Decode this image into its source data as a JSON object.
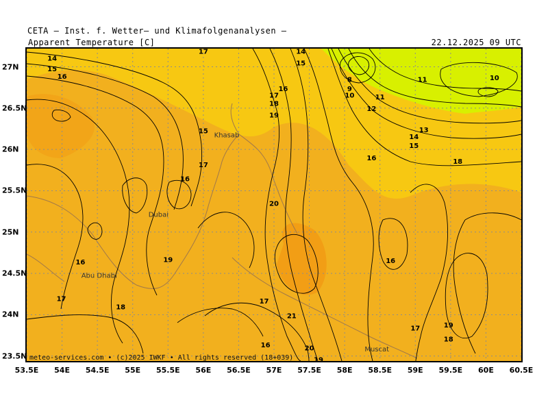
{
  "header": {
    "provider": "CETA — Inst. f. Wetter— und Klimafolgenanalysen —",
    "parameter": "Apparent Temperature [C]",
    "datetime": "22.12.2025 09 UTC"
  },
  "map": {
    "lon_range": [
      53.5,
      60.5
    ],
    "lat_range": [
      23.44,
      27.22
    ],
    "lon_ticks": [
      "53.5E",
      "54E",
      "54.5E",
      "55E",
      "55.5E",
      "56E",
      "56.5E",
      "57E",
      "57.5E",
      "58E",
      "58.5E",
      "59E",
      "59.5E",
      "60E",
      "60.5E"
    ],
    "lat_ticks": [
      {
        "lat": 27.0,
        "label": "27N"
      },
      {
        "lat": 26.5,
        "label": "26.5N"
      },
      {
        "lat": 26.0,
        "label": "26N"
      },
      {
        "lat": 25.5,
        "label": "25.5N"
      },
      {
        "lat": 25.0,
        "label": "25N"
      },
      {
        "lat": 24.5,
        "label": "24.5N"
      },
      {
        "lat": 24.0,
        "label": "24N"
      },
      {
        "lat": 23.5,
        "label": "23.5N"
      }
    ],
    "places": [
      {
        "name": "Khasab",
        "lon": 56.25,
        "lat": 26.17
      },
      {
        "name": "Dubai",
        "lon": 55.32,
        "lat": 25.21
      },
      {
        "name": "Abu Dhabi",
        "lon": 54.37,
        "lat": 24.47
      },
      {
        "name": "Muscat",
        "lon": 58.38,
        "lat": 23.58
      }
    ],
    "colors": {
      "temp_10_11": "#d8f000",
      "temp_12_15": "#f8cc10",
      "temp_16_19": "#f2b01e",
      "temp_20_23": "#f29c14",
      "contour": "#000000",
      "coast": "#a0784a",
      "grid": "#8c8c8c"
    },
    "contour_labels": [
      {
        "text": "14",
        "lon": 53.86,
        "lat": 27.11
      },
      {
        "text": "15",
        "lon": 53.86,
        "lat": 26.98
      },
      {
        "text": "16",
        "lon": 54.0,
        "lat": 26.89
      },
      {
        "text": "17",
        "lon": 56.0,
        "lat": 27.19
      },
      {
        "text": "14",
        "lon": 57.38,
        "lat": 27.19
      },
      {
        "text": "15",
        "lon": 57.38,
        "lat": 27.05
      },
      {
        "text": "16",
        "lon": 57.13,
        "lat": 26.74
      },
      {
        "text": "17",
        "lon": 57.0,
        "lat": 26.66
      },
      {
        "text": "18",
        "lon": 57.0,
        "lat": 26.56
      },
      {
        "text": "19",
        "lon": 57.0,
        "lat": 26.42
      },
      {
        "text": "15",
        "lon": 56.0,
        "lat": 26.23
      },
      {
        "text": "17",
        "lon": 56.0,
        "lat": 25.82
      },
      {
        "text": "16",
        "lon": 55.74,
        "lat": 25.65
      },
      {
        "text": "8",
        "lon": 58.07,
        "lat": 26.85
      },
      {
        "text": "9",
        "lon": 58.07,
        "lat": 26.74
      },
      {
        "text": "10",
        "lon": 58.07,
        "lat": 26.66
      },
      {
        "text": "11",
        "lon": 58.5,
        "lat": 26.64
      },
      {
        "text": "11",
        "lon": 59.1,
        "lat": 26.85
      },
      {
        "text": "10",
        "lon": 60.12,
        "lat": 26.87
      },
      {
        "text": "12",
        "lon": 58.38,
        "lat": 26.5
      },
      {
        "text": "13",
        "lon": 59.12,
        "lat": 26.24
      },
      {
        "text": "14",
        "lon": 58.98,
        "lat": 26.16
      },
      {
        "text": "15",
        "lon": 58.98,
        "lat": 26.05
      },
      {
        "text": "16",
        "lon": 58.38,
        "lat": 25.9
      },
      {
        "text": "18",
        "lon": 59.6,
        "lat": 25.86
      },
      {
        "text": "20",
        "lon": 57.0,
        "lat": 25.35
      },
      {
        "text": "16",
        "lon": 54.26,
        "lat": 24.64
      },
      {
        "text": "19",
        "lon": 55.5,
        "lat": 24.67
      },
      {
        "text": "16",
        "lon": 58.65,
        "lat": 24.66
      },
      {
        "text": "17",
        "lon": 53.99,
        "lat": 24.2
      },
      {
        "text": "18",
        "lon": 54.83,
        "lat": 24.1
      },
      {
        "text": "17",
        "lon": 56.86,
        "lat": 24.17
      },
      {
        "text": "21",
        "lon": 57.25,
        "lat": 23.99
      },
      {
        "text": "17",
        "lon": 59.0,
        "lat": 23.84
      },
      {
        "text": "19",
        "lon": 59.47,
        "lat": 23.88
      },
      {
        "text": "18",
        "lon": 59.47,
        "lat": 23.71
      },
      {
        "text": "16",
        "lon": 56.88,
        "lat": 23.64
      },
      {
        "text": "20",
        "lon": 57.5,
        "lat": 23.6
      },
      {
        "text": "19",
        "lon": 57.63,
        "lat": 23.46
      }
    ],
    "copyright": "meteo-services.com • (c)2025 IWKF • All rights reserved (18+039)"
  }
}
